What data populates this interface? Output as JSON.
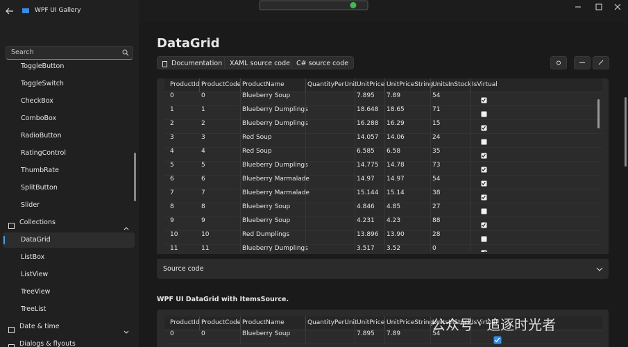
{
  "titlebar": {
    "title": "WPF UI Gallery"
  },
  "search": {
    "placeholder": "Search"
  },
  "nav": {
    "items": [
      "ToggleButton",
      "ToggleSwitch",
      "CheckBox",
      "ComboBox",
      "RadioButton",
      "RatingControl",
      "ThumbRate",
      "SplitButton",
      "Slider",
      "Collections",
      "DataGrid",
      "ListBox",
      "ListView",
      "TreeView",
      "TreeList",
      "Date & time",
      "Dialogs & flyouts"
    ]
  },
  "page": {
    "title": "DataGrid",
    "buttons": [
      "Documentation",
      "XAML source code",
      "C# source code"
    ]
  },
  "grid1": {
    "columns": [
      "ProductId",
      "ProductCode",
      "ProductName",
      "QuantityPerUnit",
      "UnitPrice",
      "UnitPriceString",
      "UnitsInStock",
      "IsVirtual"
    ],
    "rows": [
      [
        "0",
        "0",
        "Blueberry Soup",
        "",
        "7.895",
        "7.89",
        "54",
        true
      ],
      [
        "1",
        "1",
        "Blueberry Dumplings",
        "",
        "18.648",
        "18.65",
        "71",
        false
      ],
      [
        "2",
        "2",
        "Blueberry Dumplings",
        "",
        "16.288",
        "16.29",
        "15",
        true
      ],
      [
        "3",
        "3",
        "Red Soup",
        "",
        "14.057",
        "14.06",
        "24",
        false
      ],
      [
        "4",
        "4",
        "Red Soup",
        "",
        "6.585",
        "6.58",
        "35",
        true
      ],
      [
        "5",
        "5",
        "Blueberry Dumplings",
        "",
        "14.775",
        "14.78",
        "73",
        true
      ],
      [
        "6",
        "6",
        "Blueberry Marmalade",
        "",
        "14.97",
        "14.97",
        "54",
        true
      ],
      [
        "7",
        "7",
        "Blueberry Marmalade",
        "",
        "15.144",
        "15.14",
        "38",
        true
      ],
      [
        "8",
        "8",
        "Blueberry Soup",
        "",
        "4.846",
        "4.85",
        "27",
        false
      ],
      [
        "9",
        "9",
        "Blueberry Soup",
        "",
        "4.231",
        "4.23",
        "88",
        true
      ],
      [
        "10",
        "10",
        "Red Dumplings",
        "",
        "13.896",
        "13.90",
        "28",
        false
      ],
      [
        "11",
        "11",
        "Blueberry Dumplings",
        "",
        "3.517",
        "3.52",
        "0",
        true
      ]
    ]
  },
  "expander": {
    "label": "Source code"
  },
  "section2": {
    "title": "WPF UI DataGrid with ItemsSource."
  },
  "grid2": {
    "columns": [
      "ProductId",
      "ProductCode",
      "ProductName",
      "QuantityPerUnit",
      "UnitPrice",
      "UnitPriceString",
      "UnitsInStock",
      "IsVirtual"
    ],
    "rows": [
      [
        "0",
        "0",
        "Blueberry Soup",
        "",
        "7.895",
        "7.89",
        "54",
        true
      ]
    ]
  },
  "watermark": {
    "text": "公众号 · 追逐时光者"
  }
}
